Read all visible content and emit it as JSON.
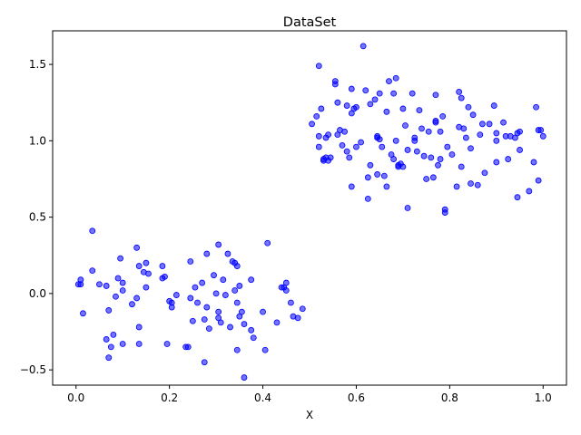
{
  "chart_data": {
    "type": "scatter",
    "title": "DataSet",
    "xlabel": "X",
    "ylabel": "",
    "xlim": [
      -0.05,
      1.05
    ],
    "ylim": [
      -0.6,
      1.72
    ],
    "xticks": [
      0.0,
      0.2,
      0.4,
      0.6,
      0.8,
      1.0
    ],
    "xtick_labels": [
      "0.0",
      "0.2",
      "0.4",
      "0.6",
      "0.8",
      "1.0"
    ],
    "yticks": [
      -0.5,
      0.0,
      0.5,
      1.0,
      1.5
    ],
    "ytick_labels": [
      "−0.5",
      "0.0",
      "0.5",
      "1.0",
      "1.5"
    ],
    "grid": false,
    "marker_color": "#0000ff",
    "series": [
      {
        "points": [
          [
            0.005,
            0.06
          ],
          [
            0.01,
            0.09
          ],
          [
            0.01,
            0.06
          ],
          [
            0.015,
            -0.13
          ],
          [
            0.035,
            0.15
          ],
          [
            0.035,
            0.41
          ],
          [
            0.05,
            0.06
          ],
          [
            0.065,
            0.05
          ],
          [
            0.065,
            -0.3
          ],
          [
            0.07,
            -0.11
          ],
          [
            0.07,
            -0.42
          ],
          [
            0.075,
            -0.35
          ],
          [
            0.08,
            -0.27
          ],
          [
            0.085,
            -0.02
          ],
          [
            0.09,
            0.1
          ],
          [
            0.095,
            0.23
          ],
          [
            0.1,
            0.02
          ],
          [
            0.1,
            0.07
          ],
          [
            0.1,
            -0.33
          ],
          [
            0.12,
            -0.07
          ],
          [
            0.13,
            0.3
          ],
          [
            0.13,
            -0.03
          ],
          [
            0.135,
            0.18
          ],
          [
            0.135,
            -0.22
          ],
          [
            0.135,
            -0.33
          ],
          [
            0.145,
            0.14
          ],
          [
            0.15,
            0.2
          ],
          [
            0.15,
            0.04
          ],
          [
            0.155,
            0.13
          ],
          [
            0.185,
            0.18
          ],
          [
            0.185,
            0.1
          ],
          [
            0.19,
            0.11
          ],
          [
            0.195,
            -0.33
          ],
          [
            0.2,
            -0.05
          ],
          [
            0.205,
            -0.06
          ],
          [
            0.205,
            -0.09
          ],
          [
            0.215,
            -0.01
          ],
          [
            0.235,
            -0.35
          ],
          [
            0.24,
            -0.35
          ],
          [
            0.245,
            0.21
          ],
          [
            0.245,
            -0.03
          ],
          [
            0.25,
            -0.18
          ],
          [
            0.255,
            0.04
          ],
          [
            0.26,
            -0.06
          ],
          [
            0.27,
            0.07
          ],
          [
            0.275,
            -0.17
          ],
          [
            0.275,
            -0.45
          ],
          [
            0.28,
            0.26
          ],
          [
            0.28,
            -0.09
          ],
          [
            0.285,
            -0.23
          ],
          [
            0.295,
            0.12
          ],
          [
            0.3,
            0.0
          ],
          [
            0.305,
            0.32
          ],
          [
            0.305,
            -0.12
          ],
          [
            0.305,
            -0.16
          ],
          [
            0.31,
            -0.19
          ],
          [
            0.315,
            0.09
          ],
          [
            0.32,
            -0.01
          ],
          [
            0.325,
            0.26
          ],
          [
            0.33,
            -0.22
          ],
          [
            0.335,
            0.21
          ],
          [
            0.34,
            0.02
          ],
          [
            0.34,
            0.2
          ],
          [
            0.345,
            0.18
          ],
          [
            0.345,
            -0.06
          ],
          [
            0.345,
            -0.37
          ],
          [
            0.35,
            -0.15
          ],
          [
            0.35,
            0.05
          ],
          [
            0.355,
            -0.12
          ],
          [
            0.36,
            -0.2
          ],
          [
            0.36,
            -0.55
          ],
          [
            0.375,
            0.09
          ],
          [
            0.375,
            -0.24
          ],
          [
            0.38,
            -0.29
          ],
          [
            0.4,
            -0.12
          ],
          [
            0.405,
            -0.37
          ],
          [
            0.41,
            0.33
          ],
          [
            0.43,
            -0.19
          ],
          [
            0.44,
            0.04
          ],
          [
            0.445,
            0.04
          ],
          [
            0.45,
            0.07
          ],
          [
            0.45,
            0.02
          ],
          [
            0.46,
            -0.06
          ],
          [
            0.465,
            -0.15
          ],
          [
            0.475,
            -0.16
          ],
          [
            0.485,
            -0.1
          ]
        ]
      },
      {
        "points": [
          [
            0.505,
            1.11
          ],
          [
            0.515,
            1.16
          ],
          [
            0.52,
            1.49
          ],
          [
            0.52,
            1.03
          ],
          [
            0.52,
            0.96
          ],
          [
            0.525,
            1.21
          ],
          [
            0.53,
            0.88
          ],
          [
            0.53,
            0.87
          ],
          [
            0.535,
            0.89
          ],
          [
            0.535,
            1.02
          ],
          [
            0.54,
            1.04
          ],
          [
            0.54,
            0.87
          ],
          [
            0.545,
            0.89
          ],
          [
            0.555,
            1.39
          ],
          [
            0.555,
            1.37
          ],
          [
            0.56,
            1.04
          ],
          [
            0.56,
            1.25
          ],
          [
            0.565,
            1.07
          ],
          [
            0.57,
            0.97
          ],
          [
            0.575,
            1.06
          ],
          [
            0.58,
            1.23
          ],
          [
            0.58,
            0.93
          ],
          [
            0.585,
            0.89
          ],
          [
            0.59,
            1.34
          ],
          [
            0.59,
            0.7
          ],
          [
            0.59,
            1.18
          ],
          [
            0.595,
            1.21
          ],
          [
            0.6,
            0.96
          ],
          [
            0.6,
            1.22
          ],
          [
            0.61,
            0.99
          ],
          [
            0.615,
            1.62
          ],
          [
            0.62,
            1.33
          ],
          [
            0.625,
            0.76
          ],
          [
            0.625,
            0.62
          ],
          [
            0.63,
            0.84
          ],
          [
            0.63,
            1.24
          ],
          [
            0.64,
            1.27
          ],
          [
            0.645,
            1.03
          ],
          [
            0.645,
            1.02
          ],
          [
            0.645,
            0.78
          ],
          [
            0.65,
            1.31
          ],
          [
            0.65,
            1.01
          ],
          [
            0.655,
            0.96
          ],
          [
            0.66,
            0.77
          ],
          [
            0.665,
            1.19
          ],
          [
            0.665,
            0.7
          ],
          [
            0.67,
            1.39
          ],
          [
            0.675,
            0.91
          ],
          [
            0.68,
            1.31
          ],
          [
            0.68,
            0.88
          ],
          [
            0.685,
            1.41
          ],
          [
            0.685,
            1.0
          ],
          [
            0.69,
            0.84
          ],
          [
            0.69,
            0.83
          ],
          [
            0.695,
            0.85
          ],
          [
            0.7,
            1.21
          ],
          [
            0.7,
            0.83
          ],
          [
            0.705,
            1.1
          ],
          [
            0.71,
            0.94
          ],
          [
            0.71,
            0.56
          ],
          [
            0.72,
            1.31
          ],
          [
            0.725,
            1.0
          ],
          [
            0.725,
            1.02
          ],
          [
            0.73,
            0.93
          ],
          [
            0.735,
            1.2
          ],
          [
            0.74,
            1.08
          ],
          [
            0.745,
            0.9
          ],
          [
            0.75,
            0.75
          ],
          [
            0.755,
            1.06
          ],
          [
            0.76,
            0.89
          ],
          [
            0.765,
            0.76
          ],
          [
            0.77,
            1.3
          ],
          [
            0.77,
            1.13
          ],
          [
            0.77,
            1.12
          ],
          [
            0.775,
            0.84
          ],
          [
            0.78,
            1.06
          ],
          [
            0.78,
            0.88
          ],
          [
            0.785,
            1.16
          ],
          [
            0.79,
            0.55
          ],
          [
            0.79,
            0.53
          ],
          [
            0.795,
            0.96
          ],
          [
            0.805,
            0.91
          ],
          [
            0.815,
            0.7
          ],
          [
            0.82,
            1.09
          ],
          [
            0.82,
            1.32
          ],
          [
            0.825,
            0.83
          ],
          [
            0.825,
            1.28
          ],
          [
            0.83,
            1.08
          ],
          [
            0.835,
            1.02
          ],
          [
            0.84,
            1.22
          ],
          [
            0.845,
            0.95
          ],
          [
            0.845,
            0.72
          ],
          [
            0.85,
            1.17
          ],
          [
            0.86,
            0.71
          ],
          [
            0.865,
            1.04
          ],
          [
            0.87,
            1.11
          ],
          [
            0.875,
            0.79
          ],
          [
            0.885,
            1.11
          ],
          [
            0.895,
            1.23
          ],
          [
            0.9,
            1.05
          ],
          [
            0.9,
            1.0
          ],
          [
            0.9,
            0.86
          ],
          [
            0.915,
            1.12
          ],
          [
            0.92,
            1.03
          ],
          [
            0.925,
            0.88
          ],
          [
            0.93,
            1.03
          ],
          [
            0.94,
            1.02
          ],
          [
            0.945,
            0.63
          ],
          [
            0.945,
            1.05
          ],
          [
            0.95,
            1.06
          ],
          [
            0.95,
            0.94
          ],
          [
            0.97,
            0.67
          ],
          [
            0.98,
            0.86
          ],
          [
            0.985,
            1.22
          ],
          [
            0.99,
            1.07
          ],
          [
            0.99,
            0.74
          ],
          [
            0.995,
            1.07
          ],
          [
            1.0,
            1.03
          ]
        ]
      }
    ]
  }
}
